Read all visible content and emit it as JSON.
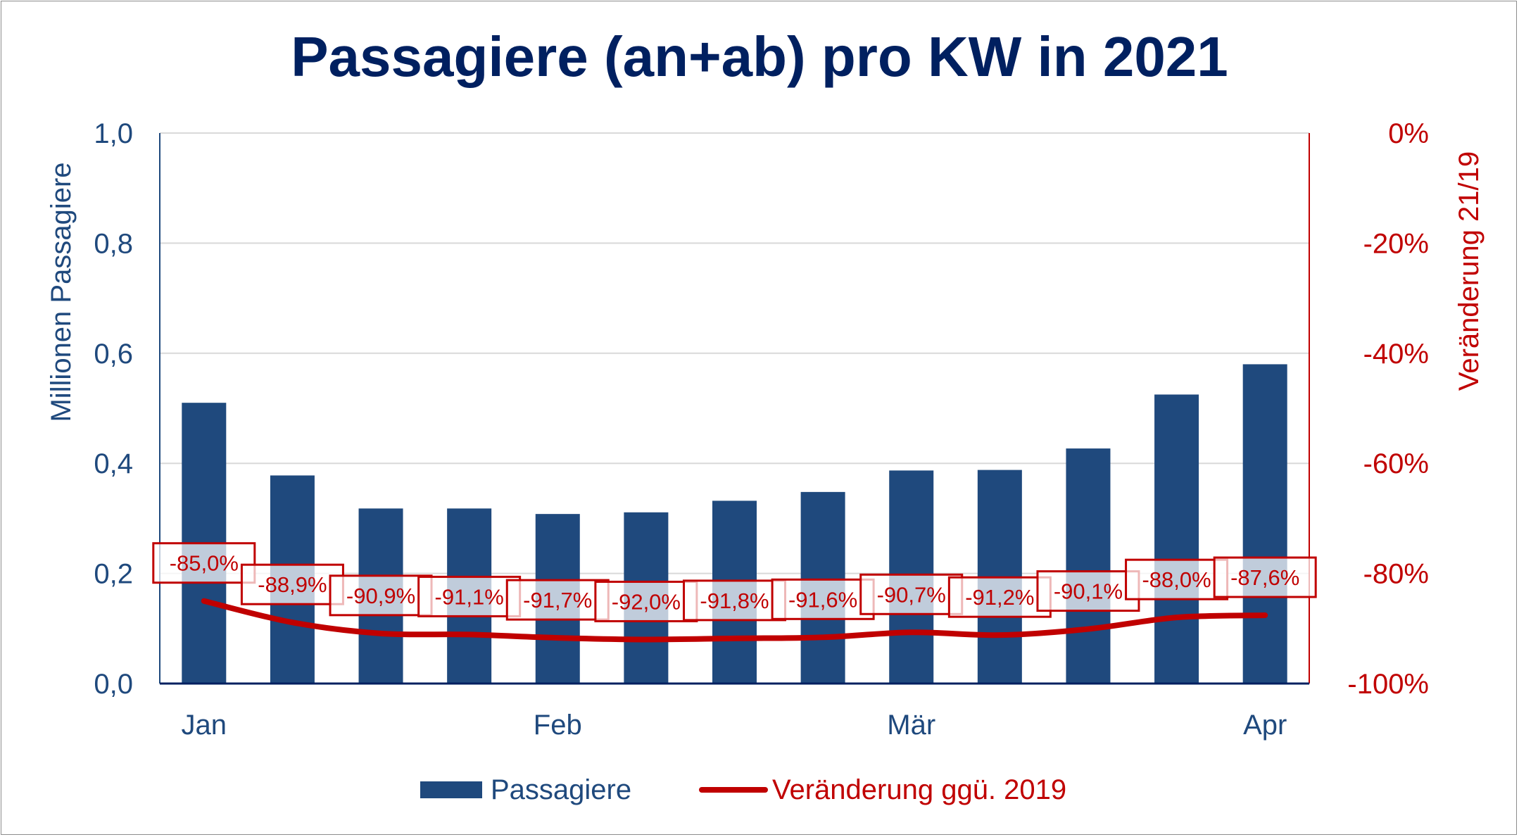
{
  "chart_data": {
    "type": "bar+line",
    "title": "Passagiere (an+ab) pro KW in 2021",
    "ylabel": "Millionen Passagiere",
    "y2label": "Veränderung 21/19",
    "ylim": [
      0,
      1.0
    ],
    "y2lim": [
      -100,
      0
    ],
    "yticks": [
      "0,0",
      "0,2",
      "0,4",
      "0,6",
      "0,8",
      "1,0"
    ],
    "y2ticks": [
      "-100%",
      "-80%",
      "-60%",
      "-40%",
      "-20%",
      "0%"
    ],
    "x_tick_labels": [
      {
        "index": 0,
        "label": "Jan"
      },
      {
        "index": 4,
        "label": "Feb"
      },
      {
        "index": 8,
        "label": "Mär"
      },
      {
        "index": 12,
        "label": "Apr"
      }
    ],
    "grid": true,
    "legend": "bottom",
    "colors": {
      "bars": "#1f497d",
      "line": "#c00000",
      "title": "#002060"
    },
    "series": [
      {
        "name": "Passagiere",
        "type": "bar",
        "axis": "left",
        "values": [
          0.51,
          0.378,
          0.318,
          0.318,
          0.308,
          0.311,
          0.332,
          0.348,
          0.387,
          0.388,
          0.427,
          0.525,
          0.58
        ]
      },
      {
        "name": "Veränderung ggü. 2019",
        "type": "line",
        "axis": "right",
        "values": [
          -85.0,
          -88.9,
          -90.9,
          -91.1,
          -91.7,
          -92.0,
          -91.8,
          -91.6,
          -90.7,
          -91.2,
          -90.1,
          -88.0,
          -87.6
        ],
        "labels": [
          "-85,0%",
          "-88,9%",
          "-90,9%",
          "-91,1%",
          "-91,7%",
          "-92,0%",
          "-91,8%",
          "-91,6%",
          "-90,7%",
          "-91,2%",
          "-90,1%",
          "-88,0%",
          "-87,6%"
        ]
      }
    ]
  }
}
